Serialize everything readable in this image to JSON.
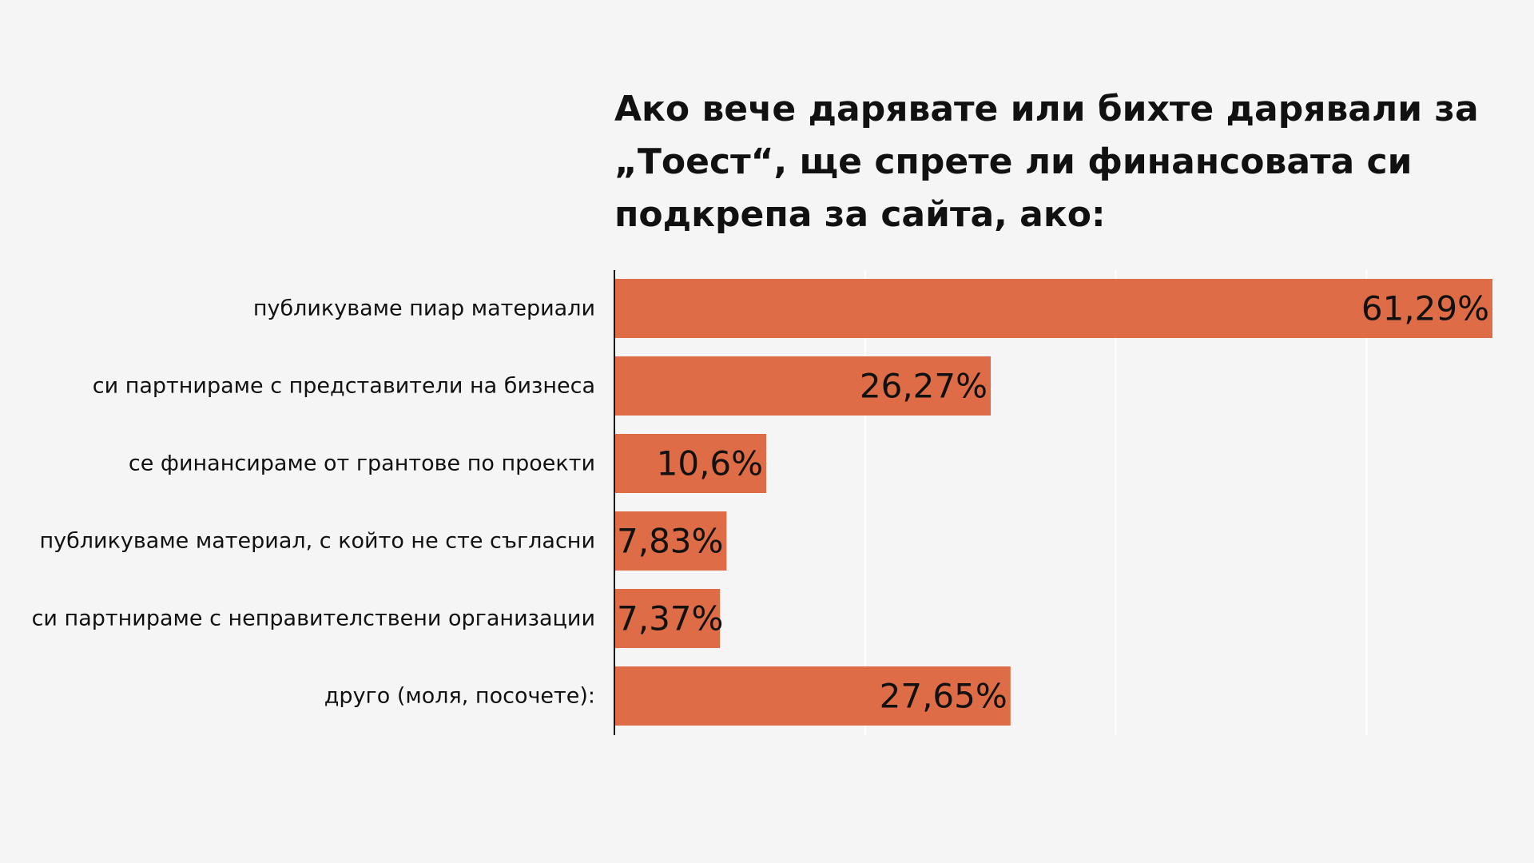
{
  "chart_data": {
    "type": "bar",
    "orientation": "horizontal",
    "title": "Ако вече дарявате или бихте дарявали за „Тоест“, ще спрете ли финансовата си подкрепа за сайта, ако:",
    "categories": [
      "публикуваме пиар материали",
      "си партнираме с представители на бизнеса",
      "се финансираме от грантове по проекти",
      "публикуваме материал, с който не сте съгласни",
      "си партнираме с неправителствени организации",
      "друго (моля, посочете):"
    ],
    "values": [
      61.29,
      26.27,
      10.6,
      7.83,
      7.37,
      27.65
    ],
    "value_labels": [
      "61,29%",
      "26,27%",
      "10,6%",
      "7,83%",
      "7,37%",
      "27,65%"
    ],
    "xlim": [
      0,
      61.29
    ],
    "gridlines_x": [
      17.5,
      35,
      52.5
    ],
    "grid": true,
    "bar_color": "#de6c46",
    "grid_color": "#ffffff",
    "axis_color": "#111111"
  }
}
